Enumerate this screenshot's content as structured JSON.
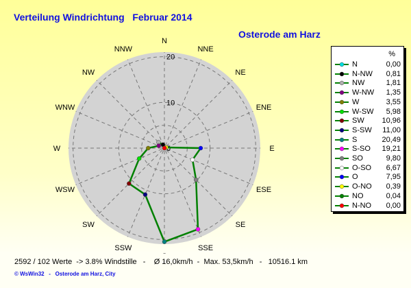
{
  "title": "Verteilung Windrichtung   Februar 2014",
  "subtitle": "Osterode am Harz",
  "chart_data": {
    "type": "polar-line",
    "directions": [
      "N",
      "NNE",
      "NE",
      "ENE",
      "E",
      "ESE",
      "SE",
      "SSE",
      "S",
      "SSW",
      "SW",
      "WSW",
      "W",
      "WNW",
      "NW",
      "NNW"
    ],
    "ring_ticks": [
      "0",
      "10",
      "20"
    ],
    "rmax": 21,
    "line_color": "#008000",
    "legend_header": "%",
    "series": [
      {
        "name": "N",
        "value": 0.0,
        "display": "0,00",
        "color": "#00e0e0",
        "angle": 0
      },
      {
        "name": "N-NW",
        "value": 0.81,
        "display": "0,81",
        "color": "#000000",
        "angle": 337.5
      },
      {
        "name": "NW",
        "value": 1.81,
        "display": "1,81",
        "color": "#b0b0b0",
        "angle": 315
      },
      {
        "name": "W-NW",
        "value": 1.35,
        "display": "1,35",
        "color": "#800080",
        "angle": 292.5
      },
      {
        "name": "W",
        "value": 3.55,
        "display": "3,55",
        "color": "#808000",
        "angle": 270
      },
      {
        "name": "W-SW",
        "value": 5.98,
        "display": "5,98",
        "color": "#00e000",
        "angle": 247.5
      },
      {
        "name": "SW",
        "value": 10.96,
        "display": "10,96",
        "color": "#800000",
        "angle": 225
      },
      {
        "name": "S-SW",
        "value": 11.0,
        "display": "11,00",
        "color": "#000080",
        "angle": 202.5
      },
      {
        "name": "S",
        "value": 20.49,
        "display": "20,49",
        "color": "#008080",
        "angle": 180
      },
      {
        "name": "S-SO",
        "value": 19.21,
        "display": "19,21",
        "color": "#ff00ff",
        "angle": 157.5
      },
      {
        "name": "SO",
        "value": 9.8,
        "display": "9,80",
        "color": "#808080",
        "angle": 135
      },
      {
        "name": "O-SO",
        "value": 6.67,
        "display": "6,67",
        "color": "#ffffff",
        "angle": 112.5
      },
      {
        "name": "O",
        "value": 7.95,
        "display": "7,95",
        "color": "#0000ff",
        "angle": 90
      },
      {
        "name": "O-NO",
        "value": 0.39,
        "display": "0,39",
        "color": "#ffff00",
        "angle": 67.5
      },
      {
        "name": "NO",
        "value": 0.04,
        "display": "0,04",
        "color": "#008000",
        "angle": 45
      },
      {
        "name": "N-NO",
        "value": 0.0,
        "display": "0,00",
        "color": "#ff0000",
        "angle": 22.5
      }
    ]
  },
  "footer": "2592 / 102 Werte  -> 3.8% Windstille   -    Ø 16,0km/h  -  Max. 53,5km/h   -   10516.1 km",
  "credit": "© WsWin32   -   Osterode am Harz, City"
}
